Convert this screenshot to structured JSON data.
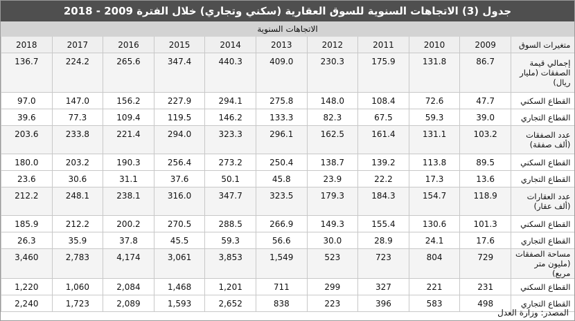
{
  "title": "جدول (3) الاتجاهات السنوية للسوق العقارية (سكني وتجاري) خلال الفترة 2009 - 2018",
  "subheader": "الاتجاهات السنوية",
  "table": {
    "label_header": "متغيرات السوق",
    "years": [
      "2009",
      "2010",
      "2011",
      "2012",
      "2013",
      "2014",
      "2015",
      "2016",
      "2017",
      "2018"
    ],
    "rows": [
      {
        "label": "إجمالي قيمة الصفقات (مليار ريال)",
        "values": [
          "86.7",
          "131.8",
          "175.9",
          "230.3",
          "409.0",
          "440.3",
          "347.4",
          "265.6",
          "224.2",
          "136.7"
        ]
      },
      {
        "label": "القطاع السكني",
        "values": [
          "47.7",
          "72.6",
          "108.4",
          "148.0",
          "275.8",
          "294.1",
          "227.9",
          "156.2",
          "147.0",
          "97.0"
        ]
      },
      {
        "label": "القطاع التجاري",
        "values": [
          "39.0",
          "59.3",
          "67.5",
          "82.3",
          "133.3",
          "146.2",
          "119.5",
          "109.4",
          "77.3",
          "39.6"
        ]
      },
      {
        "label": "عدد الصفقات (ألف صفقة)",
        "values": [
          "103.2",
          "131.1",
          "161.4",
          "162.5",
          "296.1",
          "323.3",
          "294.0",
          "221.4",
          "233.8",
          "203.6"
        ]
      },
      {
        "label": "القطاع السكني",
        "values": [
          "89.5",
          "113.8",
          "139.2",
          "138.7",
          "250.4",
          "273.2",
          "256.4",
          "190.3",
          "203.2",
          "180.0"
        ]
      },
      {
        "label": "القطاع التجاري",
        "values": [
          "13.6",
          "17.3",
          "22.2",
          "23.9",
          "45.8",
          "50.1",
          "37.6",
          "31.1",
          "30.6",
          "23.6"
        ]
      },
      {
        "label": "عدد العقارات (ألف عقار)",
        "values": [
          "118.9",
          "154.7",
          "184.3",
          "179.3",
          "323.5",
          "347.7",
          "316.0",
          "238.1",
          "248.1",
          "212.2"
        ]
      },
      {
        "label": "القطاع السكني",
        "values": [
          "101.3",
          "130.6",
          "155.4",
          "149.3",
          "266.9",
          "288.5",
          "270.5",
          "200.2",
          "212.2",
          "185.9"
        ]
      },
      {
        "label": "القطاع التجاري",
        "values": [
          "17.6",
          "24.1",
          "28.9",
          "30.0",
          "56.6",
          "59.3",
          "45.5",
          "37.8",
          "35.9",
          "26.3"
        ]
      },
      {
        "label": "مساحة الصفقات (مليون متر مربع)",
        "values": [
          "729",
          "804",
          "723",
          "523",
          "1,549",
          "3,853",
          "3,061",
          "4,174",
          "2,783",
          "3,460"
        ]
      },
      {
        "label": "القطاع السكني",
        "values": [
          "231",
          "221",
          "327",
          "299",
          "711",
          "1,201",
          "1,468",
          "2,084",
          "1,060",
          "1,220"
        ]
      },
      {
        "label": "القطاع التجاري",
        "values": [
          "498",
          "583",
          "396",
          "223",
          "838",
          "2,652",
          "1,593",
          "2,089",
          "1,723",
          "2,240"
        ]
      }
    ]
  },
  "source": "المصدر: وزارة العدل"
}
